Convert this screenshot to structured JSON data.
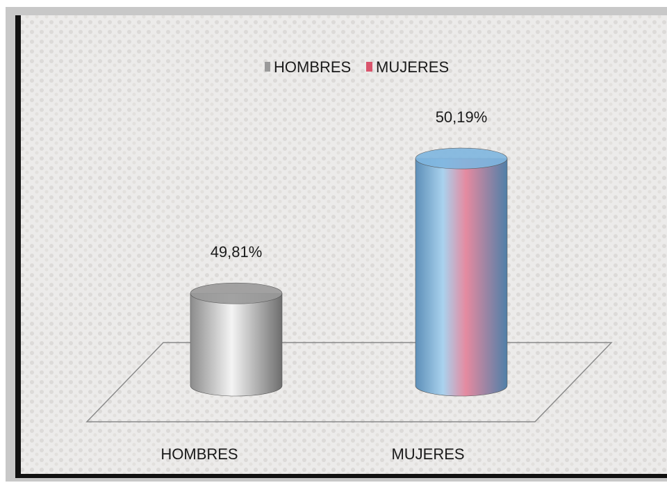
{
  "chart_data": {
    "type": "bar3d",
    "categories": [
      "HOMBRES",
      "MUJERES"
    ],
    "values": [
      49.81,
      50.19
    ],
    "value_labels": [
      "49,81%",
      "50,19%"
    ],
    "colors": [
      "#9a9a9a",
      "#7fb6e0"
    ],
    "ylim": [
      49.55,
      50.2
    ]
  }
}
